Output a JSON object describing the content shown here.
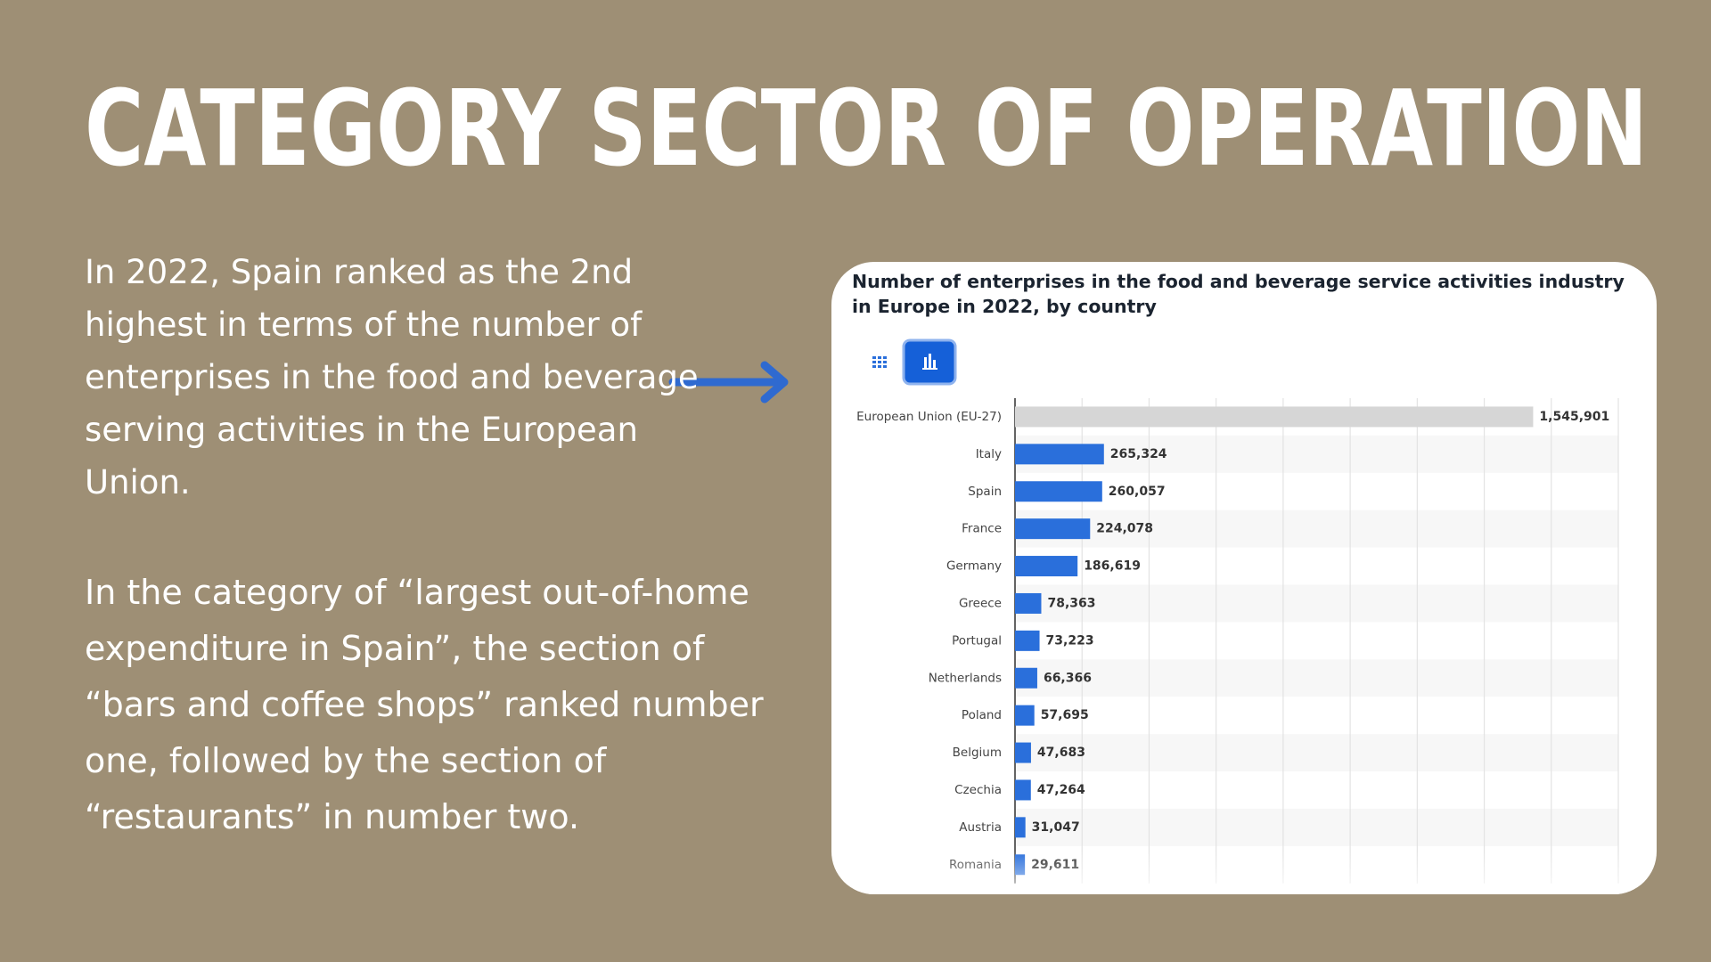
{
  "slide": {
    "title": "CATEGORY SECTOR OF OPERATION",
    "paragraphs": [
      " In 2022, Spain ranked as the 2nd highest in terms of the number of enterprises in the food and beverage serving activities in the European Union.",
      "In the category of “largest out-of-home expenditure in Spain”, the section of “bars and coffee shops” ranked number one, followed by the section of “restaurants” in number two."
    ]
  },
  "chart_data": {
    "type": "bar",
    "orientation": "horizontal",
    "title": "Number of enterprises in the food and beverage service activities industry in Europe in 2022, by country",
    "categories": [
      "European Union (EU-27)",
      "Italy",
      "Spain",
      "France",
      "Germany",
      "Greece",
      "Portugal",
      "Netherlands",
      "Poland",
      "Belgium",
      "Czechia",
      "Austria",
      "Romania"
    ],
    "values": [
      1545901,
      265324,
      260057,
      224078,
      186619,
      78363,
      73223,
      66366,
      57695,
      47683,
      47264,
      31047,
      29611
    ],
    "value_labels": [
      "1,545,901",
      "265,324",
      "260,057",
      "224,078",
      "186,619",
      "78,363",
      "73,223",
      "66,366",
      "57,695",
      "47,683",
      "47,264",
      "31,047",
      "29,611"
    ],
    "colors": [
      "#d6d6d6",
      "#2a6fdb",
      "#2a6fdb",
      "#2a6fdb",
      "#2a6fdb",
      "#2a6fdb",
      "#2a6fdb",
      "#2a6fdb",
      "#2a6fdb",
      "#2a6fdb",
      "#2a6fdb",
      "#2a6fdb",
      "#2a6fdb"
    ],
    "xlim": [
      0,
      1800000
    ],
    "xticks": [
      0,
      200000,
      400000,
      600000,
      800000,
      1000000,
      1200000,
      1400000,
      1600000,
      1800000
    ],
    "grid": true
  }
}
